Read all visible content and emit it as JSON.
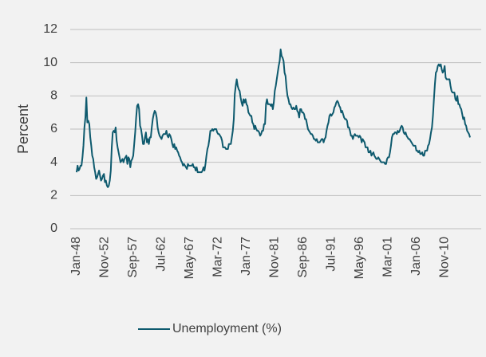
{
  "chart_data": {
    "type": "line",
    "ylabel": "Percent",
    "ylim": [
      0,
      12
    ],
    "yticks": [
      0,
      2,
      4,
      6,
      8,
      10,
      12
    ],
    "grid": true,
    "legend": "bottom",
    "categories": [
      "Jan-48",
      null,
      null,
      null,
      null,
      null,
      null,
      null,
      null,
      null,
      null,
      null,
      null,
      null,
      null,
      null,
      null,
      null,
      null,
      null,
      null,
      null,
      null,
      null,
      null,
      null,
      null,
      null,
      null,
      "Nov-52",
      null,
      null,
      null,
      null,
      null,
      null,
      null,
      null,
      null,
      null,
      null,
      null,
      null,
      null,
      null,
      null,
      null,
      null,
      null,
      null,
      null,
      null,
      null,
      null,
      null,
      null,
      null,
      null,
      "Sep-57",
      null,
      null,
      null,
      null,
      null,
      null,
      null,
      null,
      null,
      null,
      null,
      null,
      null,
      null,
      null,
      null,
      null,
      null,
      null,
      null,
      null,
      null,
      null,
      null,
      null,
      null,
      null,
      null,
      "Jul-62",
      null,
      null,
      null,
      null,
      null,
      null,
      null,
      null,
      null,
      null,
      null,
      null,
      null,
      null,
      null,
      null,
      null,
      null,
      null,
      null,
      null,
      null,
      null,
      null,
      null,
      null,
      null,
      null,
      "May-67",
      null,
      null,
      null,
      null,
      null,
      null,
      null,
      null,
      null,
      null,
      null,
      null,
      null,
      null,
      null,
      null,
      null,
      null,
      null,
      null,
      null,
      null,
      null,
      null,
      null,
      null,
      null,
      null,
      "Mar-72",
      null,
      null,
      null,
      null,
      null,
      null,
      null,
      null,
      null,
      null,
      null,
      null,
      null,
      null,
      null,
      null,
      null,
      null,
      null,
      null,
      null,
      null,
      null,
      null,
      null,
      null,
      null,
      null,
      "Jan-77",
      null,
      null,
      null,
      null,
      null,
      null,
      null,
      null,
      null,
      null,
      null,
      null,
      null,
      null,
      null,
      null,
      null,
      null,
      null,
      null,
      null,
      null,
      null,
      null,
      null,
      null,
      null,
      null,
      "Nov-81",
      null,
      null,
      null,
      null,
      null,
      null,
      null,
      null,
      null,
      null,
      null,
      null,
      null,
      null,
      null,
      null,
      null,
      null,
      null,
      null,
      null,
      null,
      null,
      null,
      null,
      null,
      null,
      null,
      "Sep-86",
      null,
      null,
      null,
      null,
      null,
      null,
      null,
      null,
      null,
      null,
      null,
      null,
      null,
      null,
      null,
      null,
      null,
      null,
      null,
      null,
      null,
      null,
      null,
      null,
      null,
      null,
      null,
      null,
      "Jul-91",
      null,
      null,
      null,
      null,
      null,
      null,
      null,
      null,
      null,
      null,
      null,
      null,
      null,
      null,
      null,
      null,
      null,
      null,
      null,
      null,
      null,
      null,
      null,
      null,
      null,
      null,
      null,
      null,
      "May-96",
      null,
      null,
      null,
      null,
      null,
      null,
      null,
      null,
      null,
      null,
      null,
      null,
      null,
      null,
      null,
      null,
      null,
      null,
      null,
      null,
      null,
      null,
      null,
      null,
      null,
      null,
      null,
      null,
      "Mar-01",
      null,
      null,
      null,
      null,
      null,
      null,
      null,
      null,
      null,
      null,
      null,
      null,
      null,
      null,
      null,
      null,
      null,
      null,
      null,
      null,
      null,
      null,
      null,
      null,
      null,
      null,
      null,
      null,
      "Jan-06",
      null,
      null,
      null,
      null,
      null,
      null,
      null,
      null,
      null,
      null,
      null,
      null,
      null,
      null,
      null,
      null,
      null,
      null,
      null,
      null,
      null,
      null,
      null,
      null,
      null,
      null,
      null,
      null,
      "Nov-10",
      null,
      null,
      null,
      null,
      null,
      null,
      null,
      null,
      null,
      null,
      null,
      null,
      null,
      null,
      null,
      null,
      null,
      null,
      null,
      null,
      null,
      null,
      null,
      null,
      null,
      null
    ],
    "series": [
      {
        "name": "Unemployment (%)",
        "color": "#0e5a6e",
        "values": [
          3.4,
          3.8,
          3.5,
          3.6,
          3.8,
          3.8,
          4.3,
          5.0,
          6.1,
          6.7,
          7.9,
          6.4,
          6.5,
          6.3,
          5.5,
          5.0,
          4.4,
          4.2,
          3.7,
          3.4,
          3.0,
          3.1,
          3.3,
          3.5,
          3.2,
          2.9,
          3.0,
          3.2,
          3.3,
          2.8,
          2.9,
          2.6,
          2.5,
          2.6,
          2.9,
          3.5,
          4.9,
          5.8,
          5.9,
          5.8,
          6.1,
          5.3,
          4.9,
          4.6,
          4.3,
          4.0,
          4.1,
          4.2,
          4.0,
          4.2,
          4.3,
          4.4,
          3.9,
          4.3,
          4.2,
          3.7,
          4.1,
          4.2,
          4.4,
          5.1,
          5.8,
          6.7,
          7.4,
          7.5,
          7.2,
          6.2,
          6.0,
          5.6,
          5.1,
          5.1,
          5.5,
          5.8,
          5.2,
          5.4,
          5.1,
          5.5,
          5.5,
          6.1,
          6.6,
          6.9,
          7.1,
          7.0,
          6.7,
          6.1,
          5.8,
          5.6,
          5.5,
          5.4,
          5.6,
          5.7,
          5.7,
          5.7,
          5.9,
          5.6,
          5.5,
          5.7,
          5.6,
          5.4,
          5.1,
          4.9,
          5.1,
          4.8,
          4.9,
          4.7,
          4.6,
          4.4,
          4.3,
          4.1,
          4.0,
          3.8,
          3.9,
          3.8,
          3.7,
          3.6,
          3.9,
          3.8,
          3.8,
          3.8,
          3.8,
          3.9,
          3.7,
          3.7,
          3.5,
          3.7,
          3.4,
          3.4,
          3.4,
          3.4,
          3.4,
          3.5,
          3.7,
          3.5,
          3.9,
          4.4,
          4.8,
          5.0,
          5.4,
          5.9,
          5.9,
          6.0,
          5.9,
          6.0,
          6.0,
          6.0,
          5.8,
          5.7,
          5.7,
          5.6,
          5.5,
          5.3,
          4.9,
          4.9,
          4.9,
          4.8,
          4.8,
          4.8,
          5.1,
          5.1,
          5.1,
          5.5,
          5.9,
          6.6,
          8.1,
          8.6,
          9.0,
          8.6,
          8.4,
          8.3,
          7.9,
          7.6,
          7.4,
          7.8,
          7.6,
          7.8,
          7.5,
          7.4,
          7.0,
          6.9,
          6.8,
          6.8,
          6.4,
          6.3,
          6.0,
          6.2,
          6.0,
          5.9,
          5.9,
          5.8,
          5.6,
          5.7,
          5.9,
          5.9,
          6.3,
          6.3,
          7.5,
          7.8,
          7.5,
          7.5,
          7.5,
          7.4,
          7.5,
          7.2,
          7.6,
          8.3,
          8.6,
          9.0,
          9.4,
          9.8,
          10.1,
          10.8,
          10.4,
          10.3,
          10.1,
          9.4,
          9.2,
          8.5,
          8.0,
          7.8,
          7.5,
          7.5,
          7.3,
          7.2,
          7.3,
          7.2,
          7.2,
          7.4,
          7.1,
          7.0,
          6.7,
          7.2,
          7.2,
          7.0,
          7.0,
          6.9,
          6.6,
          6.6,
          6.3,
          6.0,
          5.9,
          5.8,
          5.7,
          5.7,
          5.6,
          5.4,
          5.4,
          5.3,
          5.4,
          5.2,
          5.2,
          5.2,
          5.3,
          5.4,
          5.4,
          5.2,
          5.4,
          5.5,
          5.9,
          6.2,
          6.4,
          6.8,
          6.9,
          6.8,
          6.9,
          7.0,
          7.3,
          7.4,
          7.6,
          7.7,
          7.6,
          7.4,
          7.3,
          7.0,
          7.1,
          6.9,
          6.7,
          6.6,
          6.6,
          6.5,
          6.1,
          6.1,
          5.9,
          5.6,
          5.6,
          5.4,
          5.6,
          5.7,
          5.6,
          5.6,
          5.6,
          5.5,
          5.6,
          5.5,
          5.2,
          5.4,
          5.3,
          5.2,
          4.9,
          4.9,
          4.9,
          4.6,
          4.6,
          4.7,
          4.4,
          4.5,
          4.6,
          4.4,
          4.3,
          4.2,
          4.2,
          4.3,
          4.2,
          4.1,
          4.0,
          4.0,
          4.0,
          4.0,
          3.9,
          3.9,
          4.2,
          4.3,
          4.3,
          4.6,
          5.0,
          5.5,
          5.7,
          5.7,
          5.8,
          5.8,
          5.7,
          5.9,
          5.8,
          5.9,
          6.1,
          6.2,
          6.1,
          5.8,
          5.7,
          5.8,
          5.6,
          5.5,
          5.4,
          5.4,
          5.3,
          5.2,
          5.1,
          5.0,
          5.0,
          5.0,
          4.7,
          4.7,
          4.6,
          4.7,
          4.5,
          4.5,
          4.6,
          4.4,
          4.4,
          4.7,
          4.7,
          4.7,
          5.0,
          5.1,
          5.4,
          5.8,
          6.1,
          6.8,
          7.8,
          8.7,
          9.4,
          9.5,
          9.8,
          9.9,
          9.8,
          9.9,
          9.6,
          9.4,
          9.5,
          9.8,
          9.1,
          9.0,
          9.0,
          9.0,
          9.0,
          8.6,
          8.3,
          8.2,
          8.2,
          8.2,
          7.8,
          7.7,
          8.0,
          7.5,
          7.5,
          7.3,
          7.2,
          6.9,
          6.6,
          6.7,
          6.3,
          6.2,
          5.9,
          5.8,
          5.7,
          5.5
        ]
      }
    ]
  }
}
